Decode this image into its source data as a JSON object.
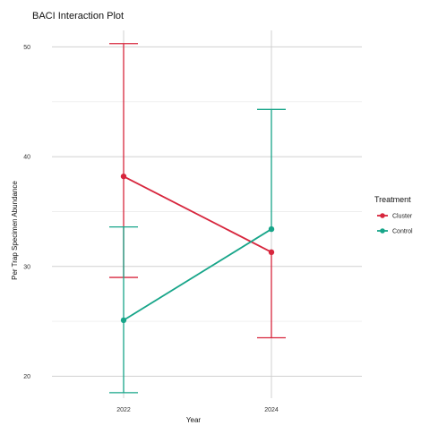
{
  "chart_data": {
    "type": "line",
    "title": "BACI Interaction Plot",
    "xlabel": "Year",
    "ylabel": "Per Trap Specimen Abundance",
    "categories": [
      "2022",
      "2024"
    ],
    "ylim": [
      18,
      51.5
    ],
    "yticks": [
      20,
      30,
      40,
      50
    ],
    "grid": true,
    "legend": {
      "title": "Treatment",
      "placement": "right"
    },
    "series": [
      {
        "name": "Cluster",
        "color": "#d7263d",
        "values": [
          38.2,
          31.3
        ],
        "error_low": [
          29.0,
          23.5
        ],
        "error_high": [
          50.3,
          31.3
        ]
      },
      {
        "name": "Control",
        "color": "#17a589",
        "values": [
          25.1,
          33.4
        ],
        "error_low": [
          18.5,
          33.4
        ],
        "error_high": [
          33.6,
          44.3
        ]
      }
    ]
  }
}
